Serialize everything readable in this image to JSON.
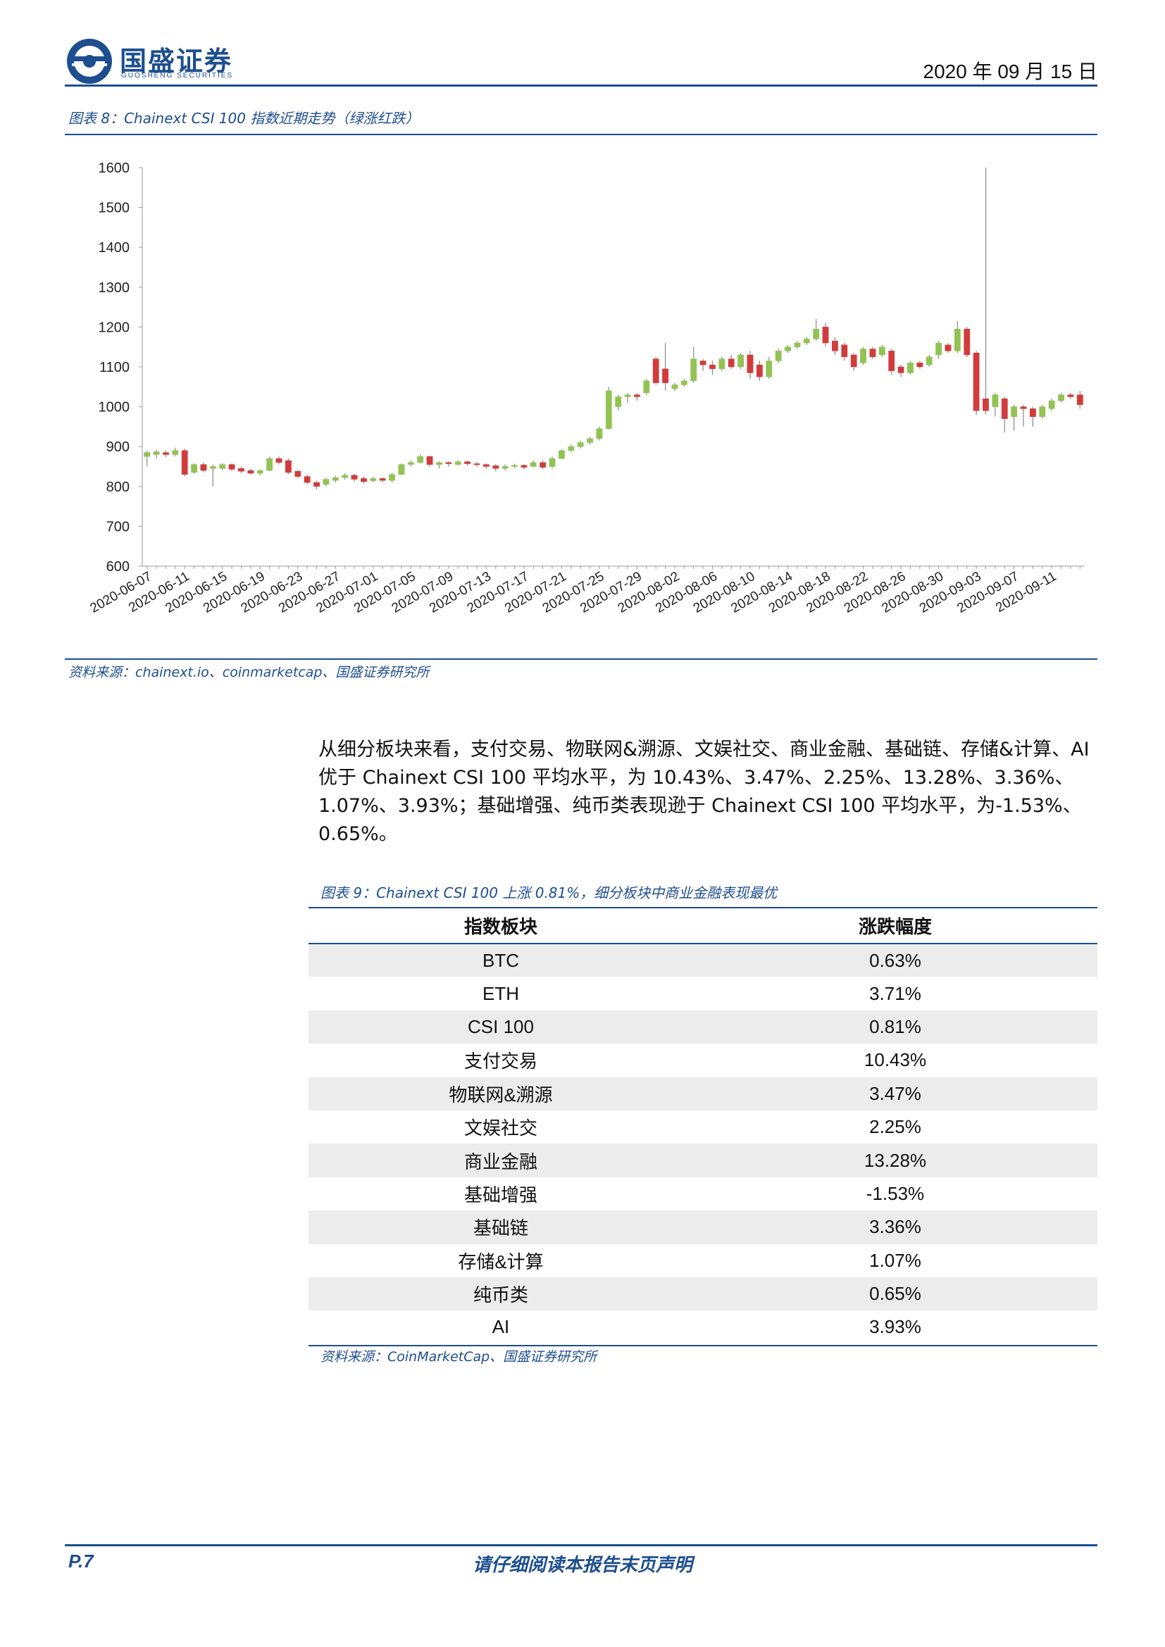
{
  "header": {
    "brand_name": "国盛证券",
    "brand_sub": "GUOSHENG SECURITIES",
    "date": "2020 年 09 月 15 日",
    "accent_color": "#1d4e8f"
  },
  "figure8": {
    "caption": "图表 8：Chainext CSI 100 指数近期走势（绿涨红跌）",
    "source": "资料来源：chainext.io、coinmarketcap、国盛证券研究所"
  },
  "paragraph": "从细分板块来看，支付交易、物联网&溯源、文娱社交、商业金融、基础链、存储&计算、AI 优于 Chainext CSI 100 平均水平，为 10.43%、3.47%、2.25%、13.28%、3.36%、1.07%、3.93%；基础增强、纯币类表现逊于 Chainext CSI 100 平均水平，为-1.53%、0.65%。",
  "figure9": {
    "caption": "图表 9：Chainext CSI 100 上涨 0.81%，细分板块中商业金融表现最优",
    "headers": [
      "指数板块",
      "涨跌幅度"
    ],
    "rows": [
      [
        "BTC",
        "0.63%"
      ],
      [
        "ETH",
        "3.71%"
      ],
      [
        "CSI 100",
        "0.81%"
      ],
      [
        "支付交易",
        "10.43%"
      ],
      [
        "物联网&溯源",
        "3.47%"
      ],
      [
        "文娱社交",
        "2.25%"
      ],
      [
        "商业金融",
        "13.28%"
      ],
      [
        "基础增强",
        "-1.53%"
      ],
      [
        "基础链",
        "3.36%"
      ],
      [
        "存储&计算",
        "1.07%"
      ],
      [
        "纯币类",
        "0.65%"
      ],
      [
        "AI",
        "3.93%"
      ]
    ],
    "source": "资料来源：CoinMarketCap、国盛证券研究所"
  },
  "footer": {
    "page": "P.7",
    "note": "请仔细阅读本报告末页声明"
  },
  "chart_data": {
    "type": "candlestick",
    "ylim": [
      600,
      1600
    ],
    "yticks": [
      600,
      700,
      800,
      900,
      1000,
      1100,
      1200,
      1300,
      1400,
      1500,
      1600
    ],
    "x_tick_labels": [
      "2020-06-07",
      "2020-06-11",
      "2020-06-15",
      "2020-06-19",
      "2020-06-23",
      "2020-06-27",
      "2020-07-01",
      "2020-07-05",
      "2020-07-09",
      "2020-07-13",
      "2020-07-17",
      "2020-07-21",
      "2020-07-25",
      "2020-07-29",
      "2020-08-02",
      "2020-08-06",
      "2020-08-10",
      "2020-08-14",
      "2020-08-18",
      "2020-08-22",
      "2020-08-26",
      "2020-08-30",
      "2020-09-03",
      "2020-09-07",
      "2020-09-11"
    ],
    "up_color": "#92c353",
    "down_color": "#d23b3b",
    "candles": [
      [
        875,
        885,
        850,
        890
      ],
      [
        880,
        887,
        870,
        892
      ],
      [
        885,
        880,
        873,
        890
      ],
      [
        880,
        890,
        875,
        897
      ],
      [
        890,
        830,
        825,
        895
      ],
      [
        835,
        855,
        832,
        858
      ],
      [
        855,
        840,
        835,
        860
      ],
      [
        845,
        850,
        800,
        855
      ],
      [
        845,
        855,
        840,
        858
      ],
      [
        855,
        843,
        838,
        858
      ],
      [
        845,
        838,
        833,
        850
      ],
      [
        840,
        833,
        830,
        845
      ],
      [
        833,
        840,
        828,
        843
      ],
      [
        840,
        870,
        838,
        875
      ],
      [
        870,
        860,
        855,
        875
      ],
      [
        865,
        835,
        830,
        870
      ],
      [
        838,
        825,
        820,
        842
      ],
      [
        825,
        810,
        805,
        830
      ],
      [
        810,
        800,
        793,
        815
      ],
      [
        805,
        818,
        800,
        822
      ],
      [
        815,
        822,
        810,
        827
      ],
      [
        822,
        828,
        817,
        833
      ],
      [
        828,
        818,
        812,
        832
      ],
      [
        820,
        812,
        807,
        825
      ],
      [
        814,
        820,
        810,
        824
      ],
      [
        820,
        815,
        810,
        823
      ],
      [
        815,
        830,
        810,
        834
      ],
      [
        830,
        855,
        828,
        858
      ],
      [
        855,
        860,
        850,
        865
      ],
      [
        860,
        875,
        858,
        880
      ],
      [
        875,
        855,
        850,
        878
      ],
      [
        855,
        860,
        845,
        863
      ],
      [
        860,
        857,
        850,
        863
      ],
      [
        855,
        862,
        852,
        866
      ],
      [
        862,
        857,
        852,
        865
      ],
      [
        857,
        855,
        850,
        862
      ],
      [
        855,
        850,
        845,
        858
      ],
      [
        852,
        845,
        838,
        856
      ],
      [
        845,
        850,
        840,
        855
      ],
      [
        850,
        853,
        846,
        857
      ],
      [
        853,
        848,
        843,
        856
      ],
      [
        850,
        860,
        848,
        865
      ],
      [
        860,
        848,
        843,
        865
      ],
      [
        850,
        870,
        845,
        875
      ],
      [
        870,
        890,
        868,
        893
      ],
      [
        890,
        900,
        885,
        905
      ],
      [
        900,
        910,
        895,
        915
      ],
      [
        910,
        920,
        905,
        925
      ],
      [
        920,
        945,
        915,
        950
      ],
      [
        945,
        1040,
        943,
        1050
      ],
      [
        1000,
        1025,
        990,
        1030
      ],
      [
        1025,
        1030,
        1010,
        1035
      ],
      [
        1030,
        1025,
        1015,
        1035
      ],
      [
        1035,
        1065,
        1030,
        1070
      ],
      [
        1120,
        1060,
        1055,
        1125
      ],
      [
        1095,
        1060,
        1040,
        1160
      ],
      [
        1045,
        1055,
        1040,
        1060
      ],
      [
        1055,
        1065,
        1050,
        1070
      ],
      [
        1065,
        1120,
        1060,
        1150
      ],
      [
        1115,
        1105,
        1090,
        1120
      ],
      [
        1105,
        1095,
        1080,
        1115
      ],
      [
        1095,
        1120,
        1090,
        1125
      ],
      [
        1120,
        1100,
        1095,
        1130
      ],
      [
        1100,
        1130,
        1095,
        1135
      ],
      [
        1130,
        1085,
        1070,
        1140
      ],
      [
        1105,
        1075,
        1065,
        1115
      ],
      [
        1075,
        1115,
        1070,
        1125
      ],
      [
        1115,
        1140,
        1110,
        1145
      ],
      [
        1140,
        1150,
        1135,
        1155
      ],
      [
        1150,
        1160,
        1145,
        1165
      ],
      [
        1160,
        1170,
        1155,
        1175
      ],
      [
        1170,
        1195,
        1165,
        1220
      ],
      [
        1200,
        1160,
        1150,
        1210
      ],
      [
        1165,
        1140,
        1130,
        1175
      ],
      [
        1155,
        1125,
        1115,
        1160
      ],
      [
        1130,
        1100,
        1090,
        1135
      ],
      [
        1110,
        1145,
        1105,
        1150
      ],
      [
        1145,
        1125,
        1120,
        1150
      ],
      [
        1130,
        1150,
        1125,
        1155
      ],
      [
        1140,
        1090,
        1080,
        1145
      ],
      [
        1100,
        1085,
        1075,
        1105
      ],
      [
        1085,
        1110,
        1080,
        1115
      ],
      [
        1110,
        1100,
        1095,
        1115
      ],
      [
        1105,
        1125,
        1100,
        1130
      ],
      [
        1130,
        1160,
        1120,
        1165
      ],
      [
        1155,
        1140,
        1135,
        1160
      ],
      [
        1140,
        1195,
        1135,
        1215
      ],
      [
        1195,
        1130,
        1125,
        1200
      ],
      [
        1135,
        990,
        980,
        1140
      ],
      [
        1020,
        990,
        980,
        1600
      ],
      [
        1000,
        1030,
        975,
        1035
      ],
      [
        1020,
        970,
        935,
        1025
      ],
      [
        975,
        1000,
        940,
        1005
      ],
      [
        1000,
        995,
        950,
        1005
      ],
      [
        995,
        975,
        950,
        1000
      ],
      [
        975,
        1000,
        970,
        1005
      ],
      [
        995,
        1015,
        990,
        1020
      ],
      [
        1015,
        1030,
        1010,
        1035
      ],
      [
        1030,
        1025,
        1020,
        1035
      ],
      [
        1030,
        1005,
        995,
        1040
      ]
    ]
  }
}
